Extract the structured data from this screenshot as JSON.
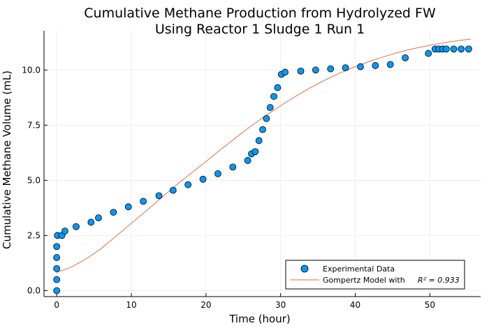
{
  "chart_data": {
    "type": "scatter",
    "title_line1": "Cumulative Methane Production from Hydrolyzed FW",
    "title_line2": "Using Reactor 1 Sludge 1 Run 1",
    "xlabel": "Time (hour)",
    "ylabel": "Cumulative Methane Volume (mL)",
    "xlim": [
      -1.7,
      56.8
    ],
    "ylim": [
      -0.27,
      11.78
    ],
    "x_ticks": [
      0,
      10,
      20,
      30,
      40,
      50
    ],
    "y_ticks": [
      0.0,
      2.5,
      5.0,
      7.5,
      10.0
    ],
    "x_tick_labels": [
      "0",
      "10",
      "20",
      "30",
      "40",
      "50"
    ],
    "y_tick_labels": [
      "0.0",
      "2.5",
      "5.0",
      "7.5",
      "10.0"
    ],
    "grid": true,
    "legend_position": "bottom-right",
    "colors": {
      "scatter": "#009af9",
      "line": "#e26f46"
    },
    "series": [
      {
        "name": "Experimental Data",
        "kind": "scatter",
        "points": [
          [
            0,
            0.0
          ],
          [
            0,
            0.5
          ],
          [
            0,
            1.0
          ],
          [
            0,
            1.5
          ],
          [
            0,
            2.0
          ],
          [
            0.1,
            2.5
          ],
          [
            0.7,
            2.5
          ],
          [
            1.1,
            2.7
          ],
          [
            2.6,
            2.9
          ],
          [
            4.6,
            3.1
          ],
          [
            5.6,
            3.3
          ],
          [
            7.6,
            3.55
          ],
          [
            9.6,
            3.8
          ],
          [
            11.6,
            4.05
          ],
          [
            13.7,
            4.3
          ],
          [
            15.6,
            4.55
          ],
          [
            17.6,
            4.8
          ],
          [
            19.6,
            5.05
          ],
          [
            21.6,
            5.3
          ],
          [
            23.6,
            5.6
          ],
          [
            25.6,
            5.9
          ],
          [
            26.1,
            6.2
          ],
          [
            26.6,
            6.3
          ],
          [
            27.1,
            6.8
          ],
          [
            27.6,
            7.3
          ],
          [
            28.1,
            7.8
          ],
          [
            28.6,
            8.3
          ],
          [
            29.1,
            8.8
          ],
          [
            29.6,
            9.2
          ],
          [
            30.1,
            9.8
          ],
          [
            30.6,
            9.9
          ],
          [
            32.7,
            9.95
          ],
          [
            34.7,
            10.0
          ],
          [
            36.7,
            10.05
          ],
          [
            38.7,
            10.1
          ],
          [
            40.7,
            10.15
          ],
          [
            42.7,
            10.2
          ],
          [
            44.7,
            10.25
          ],
          [
            46.7,
            10.55
          ],
          [
            49.8,
            10.75
          ],
          [
            50.7,
            10.95
          ],
          [
            51.2,
            10.95
          ],
          [
            51.7,
            10.95
          ],
          [
            52.2,
            10.95
          ],
          [
            53.2,
            10.95
          ],
          [
            54.2,
            10.95
          ],
          [
            55.2,
            10.95
          ]
        ]
      },
      {
        "name": "Gompertz Model with",
        "r2_label": "R² = 0.933",
        "kind": "line",
        "points": [
          [
            0,
            0.82
          ],
          [
            2,
            1.07
          ],
          [
            4,
            1.45
          ],
          [
            6,
            1.92
          ],
          [
            8,
            2.48
          ],
          [
            10,
            3.05
          ],
          [
            12,
            3.62
          ],
          [
            14,
            4.2
          ],
          [
            16,
            4.78
          ],
          [
            18,
            5.32
          ],
          [
            20,
            5.85
          ],
          [
            22,
            6.4
          ],
          [
            24,
            6.93
          ],
          [
            26,
            7.45
          ],
          [
            28,
            7.93
          ],
          [
            30,
            8.38
          ],
          [
            32,
            8.8
          ],
          [
            34,
            9.2
          ],
          [
            36,
            9.55
          ],
          [
            38,
            9.87
          ],
          [
            40,
            10.15
          ],
          [
            42,
            10.4
          ],
          [
            44,
            10.62
          ],
          [
            46,
            10.82
          ],
          [
            48,
            10.98
          ],
          [
            50,
            11.12
          ],
          [
            52,
            11.24
          ],
          [
            54,
            11.34
          ],
          [
            55.5,
            11.4
          ]
        ]
      }
    ]
  }
}
